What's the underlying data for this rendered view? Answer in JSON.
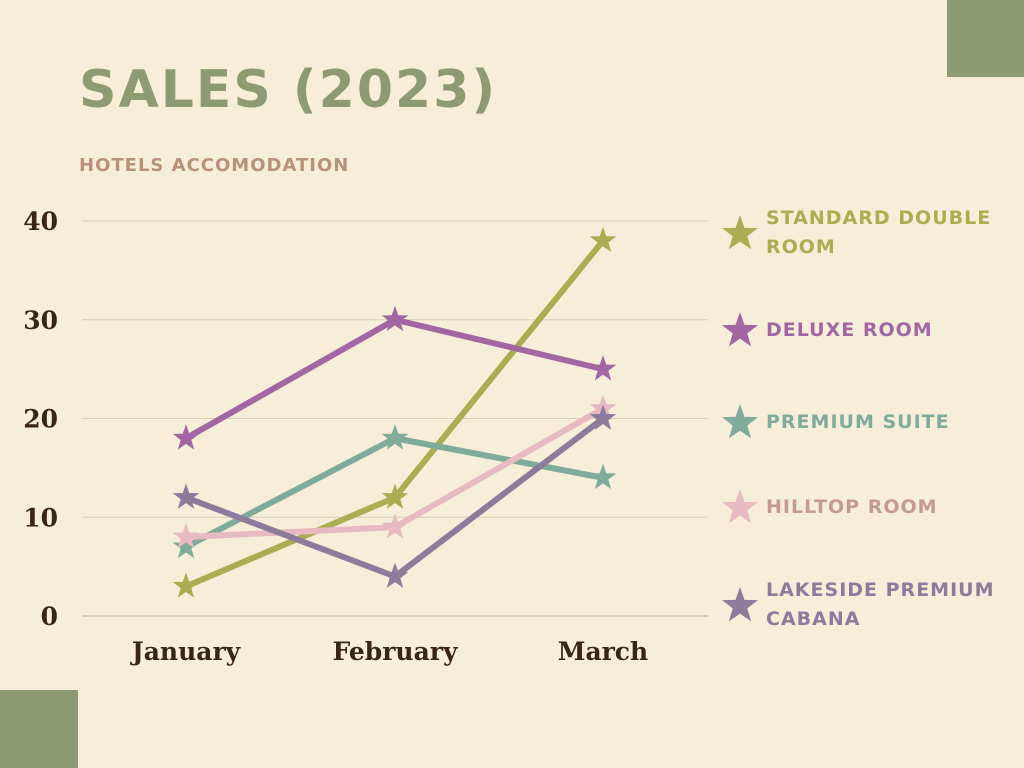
{
  "title": "SALES (2023)",
  "subtitle": "HOTELS ACCOMODATION",
  "colors": {
    "background": "#f6eed9",
    "accent": "#8e9a71",
    "title": "#8e9a71",
    "subtitle": "#b99179",
    "axis_text": "#3a2416",
    "gridline": "#d9cfb6"
  },
  "legend_icon": "star-icon",
  "chart_data": {
    "type": "line",
    "marker": "star",
    "categories": [
      "January",
      "February",
      "March"
    ],
    "ylim": [
      0,
      40
    ],
    "yticks": [
      0,
      10,
      20,
      30,
      40
    ],
    "grid": true,
    "legend_position": "right",
    "series": [
      {
        "name": "STANDARD DOUBLE ROOM",
        "color": "#abad52",
        "label_color": "#abad52",
        "values": [
          3,
          12,
          38
        ]
      },
      {
        "name": "DELUXE ROOM",
        "color": "#a267a3",
        "label_color": "#a267a3",
        "values": [
          18,
          30,
          25
        ]
      },
      {
        "name": "PREMIUM SUITE",
        "color": "#7fab9a",
        "label_color": "#7fab9a",
        "values": [
          7,
          18,
          14
        ]
      },
      {
        "name": "HILLTOP ROOM",
        "color": "#e6bac0",
        "label_color": "#c49a93",
        "values": [
          8,
          9,
          21
        ]
      },
      {
        "name": "LAKESIDE PREMIUM CABANA",
        "color": "#8c7c9c",
        "label_color": "#8c7c9c",
        "values": [
          12,
          4,
          20
        ]
      }
    ]
  }
}
